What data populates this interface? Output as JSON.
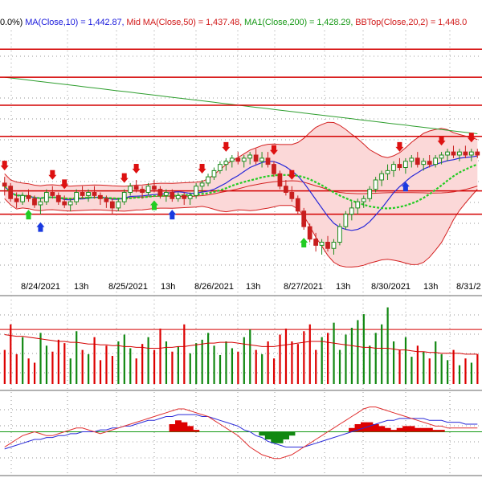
{
  "legend": [
    {
      "text": "0.0%)",
      "color": "#000000"
    },
    {
      "text": "MA(Close,10) = 1,442.87,",
      "color": "#1a1adc"
    },
    {
      "text": "Mid MA(Close,50) = 1,437.48,",
      "color": "#d11a1a"
    },
    {
      "text": "MA1(Close,200) = 1,428.29,",
      "color": "#1a9a1a"
    },
    {
      "text": "BBTop(Close,20,2) = 1,448.0",
      "color": "#d11a1a"
    }
  ],
  "colors": {
    "up_candle": "#1e8c1e",
    "down_candle": "#c81e1e",
    "ma10": "#2a2ad8",
    "ma50": "#d42020",
    "ma200": "#2e9e2e",
    "bband_fill": "#fbd8d8",
    "bband_line": "#d42020",
    "mid_band_dots": "#22cc22",
    "hline": "#d40000",
    "macd_signal": "#2a2ad8",
    "macd_line": "#e03030",
    "hist_pos": "#dd0000",
    "hist_neg": "#118811",
    "grid": "#9a9a9a"
  },
  "chart_data": {
    "type": "candlestick",
    "x_tick_labels": [
      "8/24/2021",
      "13h",
      "8/25/2021",
      "13h",
      "8/26/2021",
      "13h",
      "8/27/2021",
      "13h",
      "8/30/2021",
      "13h",
      "8/31/2"
    ],
    "price": {
      "unit": "index",
      "ylim": [
        1405,
        1485
      ],
      "ma10_last": 1442.87,
      "ma50_last": 1437.48,
      "ma200_last": 1428.29,
      "bbtop_last": 1448.0,
      "horizontal_levels": [
        1479,
        1470,
        1461,
        1451,
        1433.5,
        1426
      ],
      "candles": [
        [
          1436,
          1438,
          1432,
          1435
        ],
        [
          1435,
          1436,
          1430,
          1431
        ],
        [
          1431,
          1433,
          1428,
          1430
        ],
        [
          1430,
          1433,
          1429,
          1432
        ],
        [
          1432,
          1434,
          1430,
          1431
        ],
        [
          1431,
          1432,
          1428,
          1429
        ],
        [
          1429,
          1431,
          1426,
          1430
        ],
        [
          1430,
          1434,
          1429,
          1433
        ],
        [
          1433,
          1435,
          1431,
          1432
        ],
        [
          1432,
          1433,
          1429,
          1430
        ],
        [
          1430,
          1432,
          1428,
          1429
        ],
        [
          1429,
          1431,
          1427,
          1430
        ],
        [
          1430,
          1434,
          1429,
          1433
        ],
        [
          1433,
          1435,
          1431,
          1432
        ],
        [
          1432,
          1434,
          1430,
          1433
        ],
        [
          1433,
          1435,
          1431,
          1432
        ],
        [
          1432,
          1433,
          1429,
          1431
        ],
        [
          1431,
          1432,
          1428,
          1430
        ],
        [
          1430,
          1431,
          1426,
          1428
        ],
        [
          1428,
          1431,
          1427,
          1430
        ],
        [
          1430,
          1434,
          1429,
          1433
        ],
        [
          1433,
          1436,
          1432,
          1435
        ],
        [
          1435,
          1437,
          1433,
          1434
        ],
        [
          1434,
          1435,
          1431,
          1433
        ],
        [
          1433,
          1436,
          1432,
          1435
        ],
        [
          1435,
          1437,
          1433,
          1434
        ],
        [
          1434,
          1435,
          1431,
          1432
        ],
        [
          1432,
          1434,
          1430,
          1433
        ],
        [
          1433,
          1434,
          1430,
          1431
        ],
        [
          1431,
          1433,
          1430,
          1432
        ],
        [
          1432,
          1433,
          1429,
          1431
        ],
        [
          1431,
          1433,
          1429,
          1432
        ],
        [
          1432,
          1436,
          1431,
          1435
        ],
        [
          1435,
          1437,
          1433,
          1436
        ],
        [
          1436,
          1439,
          1435,
          1438
        ],
        [
          1438,
          1441,
          1437,
          1440
        ],
        [
          1440,
          1443,
          1439,
          1442
        ],
        [
          1442,
          1444,
          1440,
          1443
        ],
        [
          1443,
          1445,
          1441,
          1444
        ],
        [
          1444,
          1446,
          1442,
          1443
        ],
        [
          1443,
          1445,
          1441,
          1444
        ],
        [
          1444,
          1446,
          1442,
          1445
        ],
        [
          1445,
          1447,
          1442,
          1443
        ],
        [
          1443,
          1446,
          1441,
          1444
        ],
        [
          1444,
          1446,
          1441,
          1442
        ],
        [
          1442,
          1443,
          1438,
          1439
        ],
        [
          1439,
          1440,
          1434,
          1435
        ],
        [
          1435,
          1437,
          1432,
          1433
        ],
        [
          1433,
          1435,
          1430,
          1431
        ],
        [
          1431,
          1432,
          1426,
          1427
        ],
        [
          1427,
          1428,
          1421,
          1422
        ],
        [
          1422,
          1423,
          1417,
          1418
        ],
        [
          1418,
          1420,
          1414,
          1416
        ],
        [
          1416,
          1418,
          1413,
          1417
        ],
        [
          1417,
          1419,
          1414,
          1415
        ],
        [
          1415,
          1418,
          1413,
          1417
        ],
        [
          1417,
          1423,
          1416,
          1422
        ],
        [
          1422,
          1427,
          1421,
          1426
        ],
        [
          1426,
          1430,
          1424,
          1428
        ],
        [
          1428,
          1431,
          1426,
          1430
        ],
        [
          1430,
          1432,
          1428,
          1431
        ],
        [
          1431,
          1435,
          1430,
          1434
        ],
        [
          1434,
          1438,
          1433,
          1437
        ],
        [
          1437,
          1440,
          1435,
          1439
        ],
        [
          1439,
          1442,
          1437,
          1440
        ],
        [
          1440,
          1443,
          1438,
          1442
        ],
        [
          1442,
          1444,
          1440,
          1441
        ],
        [
          1441,
          1444,
          1439,
          1443
        ],
        [
          1443,
          1445,
          1441,
          1444
        ],
        [
          1444,
          1446,
          1441,
          1442
        ],
        [
          1442,
          1444,
          1440,
          1443
        ],
        [
          1443,
          1445,
          1441,
          1442
        ],
        [
          1442,
          1445,
          1441,
          1444
        ],
        [
          1444,
          1446,
          1442,
          1445
        ],
        [
          1445,
          1447,
          1443,
          1446
        ],
        [
          1446,
          1448,
          1444,
          1445
        ],
        [
          1445,
          1447,
          1443,
          1446
        ],
        [
          1446,
          1448,
          1444,
          1445
        ],
        [
          1445,
          1447,
          1443,
          1446
        ],
        [
          1446,
          1447,
          1444,
          1445
        ]
      ],
      "up_arrows_at": [
        4,
        6,
        25,
        28,
        50,
        67
      ],
      "down_arrows_at": [
        0,
        8,
        10,
        20,
        22,
        33,
        37,
        45,
        48,
        66,
        73,
        78
      ]
    },
    "volume": {
      "ylim": [
        0,
        100
      ],
      "reference_line": 64,
      "avg_line": [
        58,
        57,
        56,
        56,
        55,
        54,
        53,
        52,
        51,
        50,
        50,
        49,
        49,
        48,
        47,
        47,
        46,
        46,
        45,
        45,
        44,
        44,
        43,
        43,
        42,
        42,
        42,
        43,
        43,
        44,
        44,
        45,
        46,
        47,
        48,
        48,
        49,
        49,
        49,
        48,
        47,
        46,
        45,
        44,
        44,
        44,
        45,
        46,
        47,
        48,
        49,
        50,
        50,
        50,
        49,
        48,
        47,
        46,
        45,
        44,
        43,
        43,
        42,
        42,
        42,
        41,
        40,
        40,
        39,
        38,
        38,
        37,
        37,
        36,
        36,
        36,
        36,
        35,
        35,
        35
      ],
      "values": [
        40,
        70,
        35,
        55,
        30,
        25,
        60,
        45,
        38,
        52,
        48,
        30,
        62,
        40,
        35,
        55,
        28,
        45,
        33,
        50,
        58,
        42,
        30,
        47,
        55,
        40,
        65,
        50,
        38,
        44,
        70,
        36,
        48,
        52,
        60,
        45,
        34,
        50,
        42,
        38,
        55,
        64,
        40,
        35,
        50,
        30,
        58,
        65,
        50,
        47,
        62,
        70,
        40,
        55,
        60,
        72,
        40,
        58,
        66,
        75,
        82,
        45,
        60,
        70,
        90,
        50,
        40,
        55,
        32,
        45,
        38,
        30,
        50,
        35,
        28,
        40,
        22,
        30,
        25,
        35
      ]
    },
    "macd": {
      "ylim": [
        -20,
        20
      ],
      "zero_line": 0,
      "macd": [
        -8,
        -6,
        -4,
        -2,
        -1,
        0,
        -1,
        -2,
        -2,
        -1,
        0,
        1,
        2,
        2,
        1,
        0,
        -1,
        0,
        1,
        2,
        3,
        4,
        5,
        6,
        7,
        8,
        9,
        10,
        11,
        12,
        12,
        11,
        10,
        9,
        8,
        6,
        4,
        2,
        0,
        -2,
        -5,
        -8,
        -10,
        -12,
        -13,
        -14,
        -14,
        -13,
        -12,
        -10,
        -8,
        -6,
        -4,
        -2,
        0,
        2,
        4,
        6,
        8,
        10,
        12,
        13,
        13,
        12,
        11,
        10,
        9,
        8,
        7,
        6,
        5,
        4,
        3,
        3,
        2,
        2,
        2,
        2,
        2,
        2
      ],
      "signal": [
        -9,
        -8,
        -7,
        -6,
        -5,
        -4,
        -4,
        -3,
        -3,
        -2,
        -2,
        -1,
        -1,
        0,
        0,
        0,
        1,
        1,
        2,
        2,
        3,
        3,
        4,
        5,
        6,
        6,
        7,
        8,
        8,
        9,
        9,
        9,
        9,
        8,
        8,
        7,
        6,
        5,
        4,
        3,
        1,
        0,
        -2,
        -3,
        -5,
        -6,
        -7,
        -8,
        -8,
        -8,
        -8,
        -7,
        -6,
        -5,
        -4,
        -3,
        -2,
        -1,
        0,
        1,
        2,
        3,
        4,
        5,
        6,
        6,
        7,
        7,
        7,
        7,
        7,
        6,
        6,
        6,
        5,
        5,
        5,
        4,
        4,
        4
      ],
      "histogram": [
        0,
        0,
        0,
        0,
        0,
        0,
        0,
        0,
        0,
        0,
        0,
        0,
        0,
        0,
        0,
        0,
        0,
        0,
        0,
        0,
        0,
        0,
        0,
        0,
        0,
        0,
        0,
        0,
        4,
        6,
        5,
        3,
        1,
        0,
        0,
        0,
        0,
        0,
        0,
        0,
        0,
        0,
        0,
        -2,
        -4,
        -6,
        -6,
        -4,
        -2,
        0,
        0,
        0,
        0,
        0,
        0,
        0,
        0,
        0,
        2,
        4,
        5,
        5,
        4,
        3,
        2,
        1,
        2,
        3,
        3,
        2,
        2,
        2,
        1,
        1,
        0,
        0,
        0,
        0,
        0,
        0
      ]
    }
  }
}
